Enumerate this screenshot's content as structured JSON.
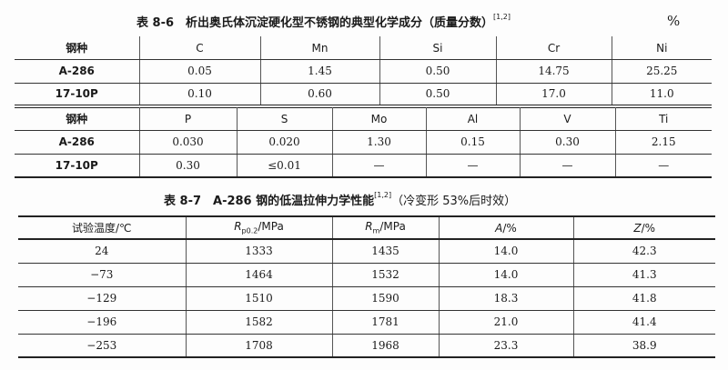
{
  "table_8_6": {
    "title": "表 8-6　析出奥氏体沉淀硬化型不锈钢的典型化学成分（质量分数）",
    "ref": "[1,2]",
    "unit": "%",
    "part1": {
      "headers": [
        "钢种",
        "C",
        "Mn",
        "Si",
        "Cr",
        "Ni"
      ],
      "rows": [
        [
          "A-286",
          "0.05",
          "1.45",
          "0.50",
          "14.75",
          "25.25"
        ],
        [
          "17-10P",
          "0.10",
          "0.60",
          "0.50",
          "17.0",
          "11.0"
        ]
      ]
    },
    "part2": {
      "headers": [
        "钢种",
        "P",
        "S",
        "Mo",
        "Al",
        "V",
        "Ti"
      ],
      "rows": [
        [
          "A-286",
          "0.030",
          "0.020",
          "1.30",
          "0.15",
          "0.30",
          "2.15"
        ],
        [
          "17-10P",
          "0.30",
          "≤0.01",
          "—",
          "—",
          "—",
          "—"
        ]
      ]
    }
  },
  "table_8_7": {
    "title": "表 8-7　A-286 钢的低温拉伸力学性能",
    "ref": "[1,2]",
    "note": "（冷变形 53%后时效）",
    "headers": {
      "temp": "试验温度/℃",
      "rp_symbol": "R",
      "rp_sub": "p0.2",
      "rp_unit": "/MPa",
      "rm_symbol": "R",
      "rm_sub": "m",
      "rm_unit": "/MPa",
      "a_symbol": "A",
      "a_unit": "/%",
      "z_symbol": "Z",
      "z_unit": "/%"
    },
    "rows": [
      [
        "24",
        "1333",
        "1435",
        "14.0",
        "42.3"
      ],
      [
        "−73",
        "1464",
        "1532",
        "14.0",
        "41.3"
      ],
      [
        "−129",
        "1510",
        "1590",
        "18.3",
        "41.8"
      ],
      [
        "−196",
        "1582",
        "1781",
        "21.0",
        "41.4"
      ],
      [
        "−253",
        "1708",
        "1968",
        "23.3",
        "38.9"
      ]
    ]
  }
}
